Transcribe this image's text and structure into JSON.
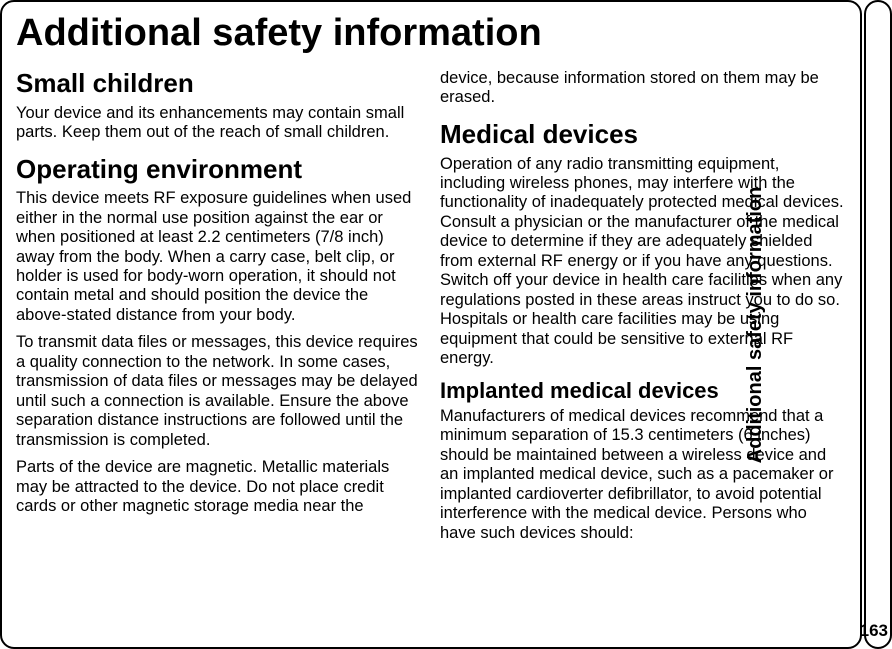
{
  "title": "Additional safety information",
  "sideLabel": "Additional safety information",
  "pageNumber": "163",
  "left": {
    "h_small": "Small children",
    "p_small": "Your device and its enhancements may contain small parts. Keep them out of the reach of small children.",
    "h_env": "Operating environment",
    "p_env1": "This device meets RF exposure guidelines when used either in the normal use position against the ear or when positioned at least 2.2 centimeters (7/8 inch) away from the body. When a carry case, belt clip, or holder is used for body-worn operation, it should not contain metal and should position the device the above-stated distance from your body.",
    "p_env2": "To transmit data files or messages, this device requires a quality connection to the network. In some cases, transmission of data files or messages may be delayed until such a connection is available. Ensure the above separation distance instructions are followed until the transmission is completed.",
    "p_env3": "Parts of the device are magnetic. Metallic materials may be attracted to the device. Do not place credit cards or other magnetic storage media near the"
  },
  "right": {
    "p_cont": "device, because information stored on them may be erased.",
    "h_med": "Medical devices",
    "p_med": "Operation of any radio transmitting equipment, including wireless phones, may interfere with the functionality of inadequately protected medical devices. Consult a physician or the manufacturer of the medical device to determine if they are adequately shielded from external RF energy or if you have any questions. Switch off your device in health care facilities when any regulations posted in these areas instruct you to do so. Hospitals or health care facilities may be using equipment that could be sensitive to external RF energy.",
    "h_imp": "Implanted medical devices",
    "p_imp": "Manufacturers of medical devices recommend that a minimum separation of 15.3 centimeters (6 inches) should be maintained between a wireless device and an implanted medical device, such as a pacemaker or implanted cardioverter defibrillator, to avoid potential interference with the medical device. Persons who have such devices should:"
  }
}
